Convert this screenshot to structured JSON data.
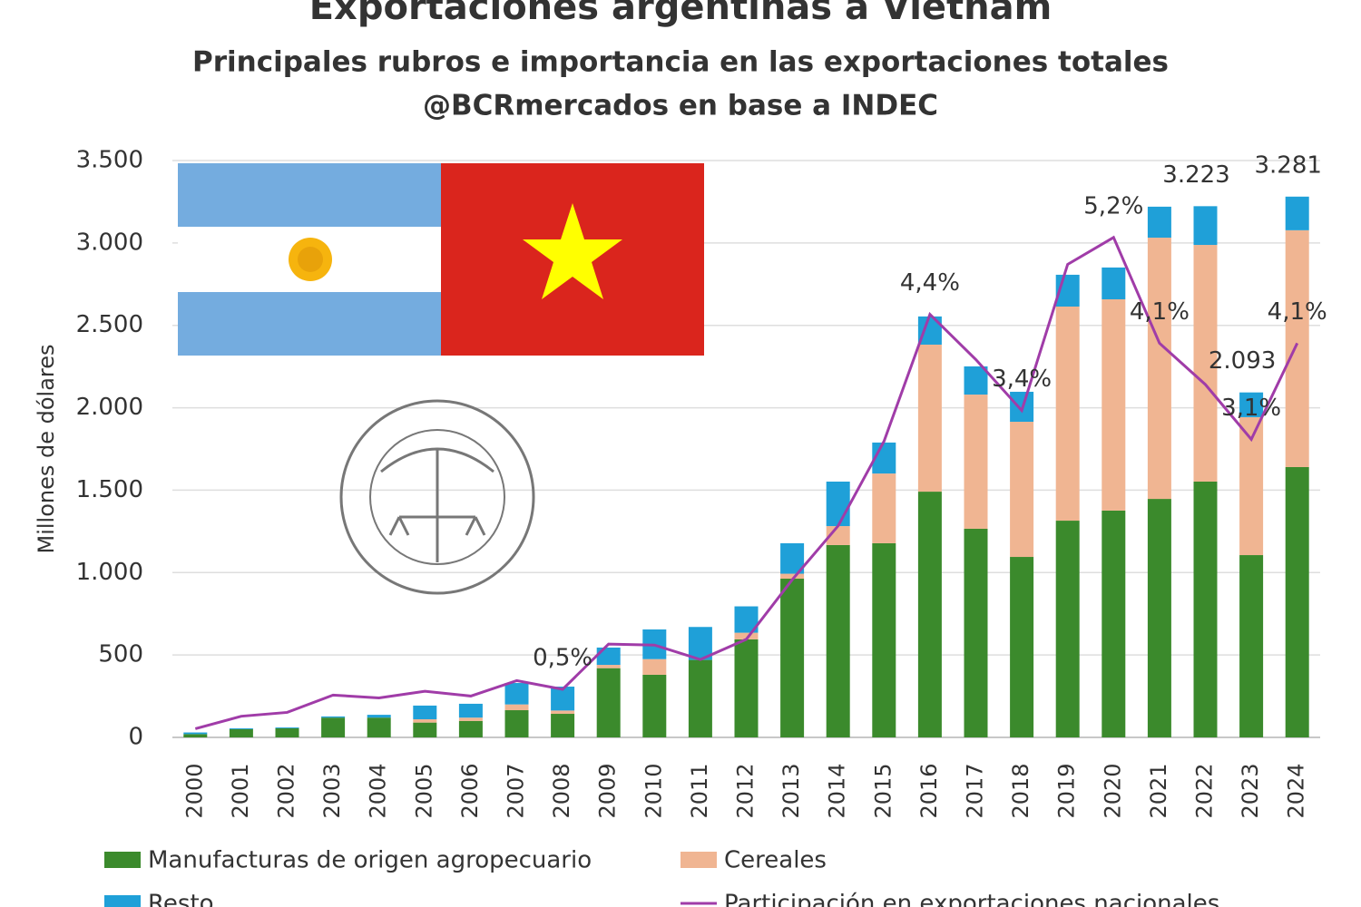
{
  "chart_data": {
    "type": "bar",
    "title": "Exportaciones argentinas a Vietnam",
    "subtitle": "Principales rubros e importancia en las exportaciones totales",
    "source": "@BCRmercados en base a INDEC",
    "y_label": "Millones de dólares",
    "stacked": true,
    "categories": [
      "2000",
      "2001",
      "2002",
      "2003",
      "2004",
      "2005",
      "2006",
      "2007",
      "2008",
      "2009",
      "2010",
      "2011",
      "2012",
      "2013",
      "2014",
      "2015",
      "2016",
      "2017",
      "2018",
      "2019",
      "2020",
      "2021",
      "2022",
      "2023",
      "2024"
    ],
    "series": [
      {
        "name": "Manufacturas de origen agropecuario",
        "color": "#3b8a2c",
        "values": [
          20,
          50,
          55,
          120,
          120,
          90,
          100,
          165,
          143,
          420,
          380,
          470,
          595,
          963,
          1167,
          1178,
          1491,
          1266,
          1095,
          1315,
          1376,
          1447,
          1552,
          1106,
          1640
        ]
      },
      {
        "name": "Cereales",
        "color": "#f0b592",
        "values": [
          0,
          0,
          0,
          0,
          0,
          20,
          20,
          35,
          20,
          20,
          95,
          0,
          40,
          30,
          115,
          423,
          892,
          814,
          820,
          1299,
          1282,
          1585,
          1436,
          837,
          1437
        ]
      },
      {
        "name": "Resto",
        "color": "#1fa0d8",
        "values": [
          10,
          5,
          5,
          7,
          17,
          83,
          84,
          130,
          145,
          105,
          180,
          200,
          160,
          185,
          270,
          188,
          171,
          171,
          182,
          193,
          193,
          188,
          235,
          150,
          204
        ]
      },
      {
        "name": "Participación en exportaciones nacionales",
        "color": "#a03ca8",
        "type": "line",
        "axis": "y2",
        "values": [
          0.09,
          0.22,
          0.26,
          0.44,
          0.41,
          0.48,
          0.43,
          0.59,
          0.5,
          0.97,
          0.96,
          0.81,
          1.02,
          1.64,
          2.2,
          3.08,
          4.4,
          3.93,
          3.4,
          4.92,
          5.2,
          4.1,
          3.67,
          3.1,
          4.1
        ],
        "value_labels": [
          null,
          null,
          null,
          null,
          null,
          null,
          null,
          null,
          "0,5%",
          null,
          null,
          null,
          null,
          null,
          null,
          null,
          "4,4%",
          null,
          "3,4%",
          null,
          "5,2%",
          "4,1%",
          null,
          "3,1%",
          "4,1%"
        ]
      }
    ],
    "annotations": [
      {
        "text": "3.223",
        "category": "2022",
        "value": 3223
      },
      {
        "text": "2.093",
        "category": "2023",
        "value": 2093
      },
      {
        "text": "3.281",
        "category": "2024",
        "value": 3281
      }
    ],
    "ylim": [
      0,
      3500
    ],
    "yticks": [
      0,
      500,
      {
        "value": 1000,
        "label": "1.000"
      },
      {
        "value": 1500,
        "label": "1.500"
      },
      {
        "value": 2000,
        "label": "2.000"
      },
      {
        "value": 2500,
        "label": "2.500"
      },
      {
        "value": 3000,
        "label": "3.000"
      },
      {
        "value": 3500,
        "label": "3.500"
      }
    ],
    "y2lim": [
      0,
      6
    ],
    "grid": true,
    "legend": "bottom"
  }
}
